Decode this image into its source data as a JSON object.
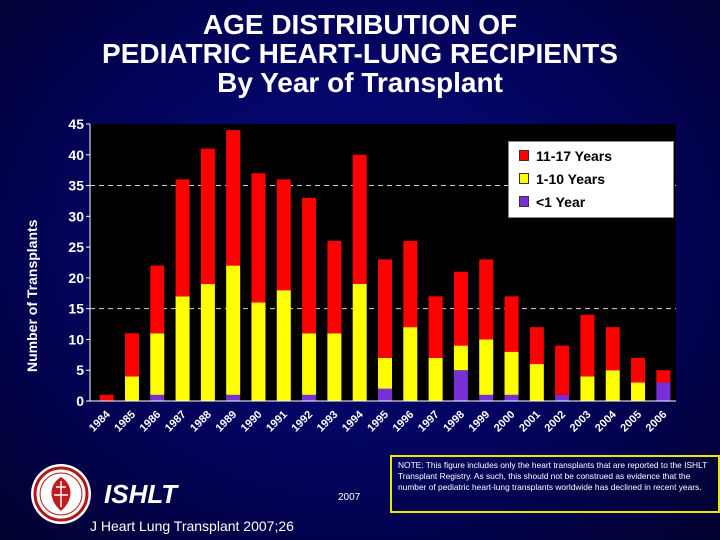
{
  "title_lines": [
    "AGE DISTRIBUTION OF",
    "PEDIATRIC HEART-LUNG RECIPIENTS",
    "By Year of Transplant"
  ],
  "colors": {
    "background": "#03035a",
    "series_11_17": "#ff0000",
    "series_1_10": "#ffff00",
    "series_lt1": "#7a2fd6",
    "note_border": "#e8e800"
  },
  "chart_data": {
    "type": "bar",
    "stacked": true,
    "title": "AGE DISTRIBUTION OF PEDIATRIC HEART-LUNG RECIPIENTS By Year of Transplant",
    "xlabel": "",
    "ylabel": "Number of Transplants",
    "ylim": [
      0,
      45
    ],
    "yticks": [
      0,
      5,
      10,
      15,
      20,
      25,
      30,
      35,
      40,
      45
    ],
    "grid": "dashed horizontal lines at 15 and 35",
    "legend_position": "top-right",
    "categories": [
      "1984",
      "1985",
      "1986",
      "1987",
      "1988",
      "1989",
      "1990",
      "1991",
      "1992",
      "1993",
      "1994",
      "1995",
      "1996",
      "1997",
      "1998",
      "1999",
      "2000",
      "2001",
      "2002",
      "2003",
      "2004",
      "2005",
      "2006"
    ],
    "series": [
      {
        "name": "<1 Year",
        "color": "#7a2fd6",
        "values": [
          0,
          0,
          1,
          0,
          0,
          1,
          0,
          0,
          1,
          0,
          0,
          2,
          0,
          0,
          5,
          1,
          1,
          0,
          1,
          0,
          0,
          0,
          3
        ]
      },
      {
        "name": "1-10 Years",
        "color": "#ffff00",
        "values": [
          0,
          4,
          10,
          17,
          19,
          21,
          16,
          18,
          10,
          11,
          19,
          5,
          12,
          7,
          4,
          9,
          7,
          6,
          0,
          4,
          5,
          3,
          0
        ]
      },
      {
        "name": "11-17 Years",
        "color": "#ff0000",
        "values": [
          1,
          7,
          11,
          19,
          22,
          22,
          21,
          18,
          22,
          15,
          21,
          16,
          14,
          10,
          12,
          13,
          9,
          6,
          8,
          10,
          7,
          4,
          2
        ]
      }
    ]
  },
  "legend": {
    "items": [
      {
        "label": "11-17 Years",
        "color": "#ff0000"
      },
      {
        "label": "1-10 Years",
        "color": "#ffff00"
      },
      {
        "label": "<1 Year",
        "color": "#7a2fd6"
      }
    ]
  },
  "footer": {
    "brand": "ISHLT",
    "year": "2007",
    "citation": "J Heart Lung Transplant 2007;26",
    "note": "NOTE: This figure includes only the heart transplants that are reported to the ISHLT Transplant Registry. As such, this should not be construed as evidence that the number of pediatric heart-lung transplants worldwide has declined in recent years."
  }
}
